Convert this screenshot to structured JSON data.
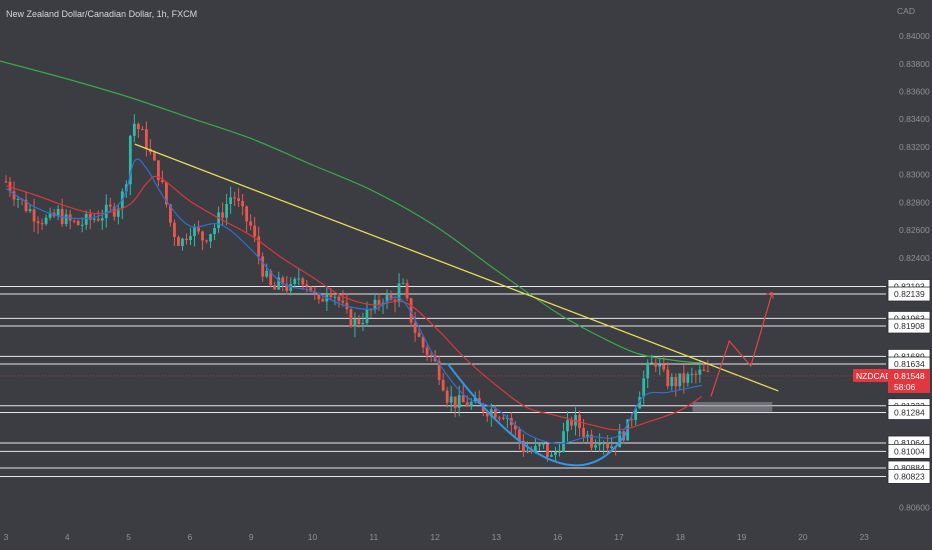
{
  "header": {
    "title": "New Zealand Dollar/Canadian Dollar, 1h, FXCM"
  },
  "colors": {
    "background": "#3b3d43",
    "bull_candle": "#2fb9a7",
    "bear_candle": "#e9574f",
    "ma_fast": "#2f6fd0",
    "ma_mid": "#d9373b",
    "ma_slow": "#38a84a",
    "trendline": "#e8dc59",
    "projection": "#e64343",
    "cup_arc": "#2e98e6",
    "level_line": "#e6e6e6",
    "price_label_bg": "#e0383e"
  },
  "chart_data": {
    "type": "candlestick",
    "symbol": "NZDCAD",
    "timeframe": "1h",
    "y_axis": {
      "currency_label": "CAD",
      "range": [
        0.8048,
        0.8426
      ],
      "ticks": [
        "0.84000",
        "0.83800",
        "0.83600",
        "0.83400",
        "0.83200",
        "0.83000",
        "0.82800",
        "0.82600",
        "0.82400",
        "0.80600"
      ]
    },
    "x_axis": {
      "ticks": [
        "3",
        "4",
        "5",
        "6",
        "9",
        "10",
        "11",
        "12",
        "13",
        "16",
        "17",
        "18",
        "19",
        "20",
        "23"
      ],
      "day_index": [
        0,
        1,
        2,
        3,
        4,
        5,
        6,
        7,
        8,
        9,
        10,
        11,
        12,
        13,
        14
      ]
    },
    "horizontal_levels": [
      "0.82193",
      "0.82139",
      "0.81963",
      "0.81908",
      "0.81689",
      "0.81634",
      "0.81333",
      "0.81284",
      "0.81064",
      "0.81004",
      "0.80884",
      "0.80823"
    ],
    "current_price": {
      "ticker": "NZDCAD",
      "price": "0.81548",
      "countdown": "58:06"
    },
    "close_path": [
      [
        0.0,
        0.8295
      ],
      [
        0.15,
        0.8286
      ],
      [
        0.3,
        0.8278
      ],
      [
        0.5,
        0.827
      ],
      [
        0.7,
        0.8266
      ],
      [
        0.85,
        0.8272
      ],
      [
        1.0,
        0.8266
      ],
      [
        1.2,
        0.8264
      ],
      [
        1.4,
        0.8268
      ],
      [
        1.6,
        0.8272
      ],
      [
        1.8,
        0.8276
      ],
      [
        1.95,
        0.829
      ],
      [
        2.0,
        0.8325
      ],
      [
        2.1,
        0.8338
      ],
      [
        2.2,
        0.833
      ],
      [
        2.3,
        0.8322
      ],
      [
        2.4,
        0.8308
      ],
      [
        2.5,
        0.83
      ],
      [
        2.6,
        0.8282
      ],
      [
        2.7,
        0.8262
      ],
      [
        2.85,
        0.825
      ],
      [
        3.0,
        0.8262
      ],
      [
        3.2,
        0.8254
      ],
      [
        3.4,
        0.8262
      ],
      [
        3.55,
        0.8275
      ],
      [
        3.7,
        0.8287
      ],
      [
        3.85,
        0.8272
      ],
      [
        4.0,
        0.8262
      ],
      [
        4.1,
        0.8245
      ],
      [
        4.2,
        0.823
      ],
      [
        4.35,
        0.8215
      ],
      [
        4.5,
        0.8223
      ],
      [
        4.65,
        0.8216
      ],
      [
        4.8,
        0.8228
      ],
      [
        4.95,
        0.822
      ],
      [
        5.1,
        0.8205
      ],
      [
        5.25,
        0.822
      ],
      [
        5.4,
        0.8212
      ],
      [
        5.55,
        0.8198
      ],
      [
        5.7,
        0.8193
      ],
      [
        5.85,
        0.8198
      ],
      [
        6.0,
        0.8203
      ],
      [
        6.15,
        0.8212
      ],
      [
        6.3,
        0.8208
      ],
      [
        6.45,
        0.8222
      ],
      [
        6.55,
        0.8205
      ],
      [
        6.65,
        0.819
      ],
      [
        6.8,
        0.8176
      ],
      [
        6.95,
        0.8168
      ],
      [
        7.1,
        0.8155
      ],
      [
        7.2,
        0.814
      ],
      [
        7.35,
        0.8135
      ],
      [
        7.55,
        0.8135
      ],
      [
        7.75,
        0.8132
      ],
      [
        7.95,
        0.813
      ],
      [
        8.15,
        0.8128
      ],
      [
        8.3,
        0.8115
      ],
      [
        8.45,
        0.8102
      ],
      [
        8.6,
        0.81
      ],
      [
        8.75,
        0.8104
      ],
      [
        8.9,
        0.8095
      ],
      [
        9.0,
        0.8103
      ],
      [
        9.1,
        0.8113
      ],
      [
        9.25,
        0.8124
      ],
      [
        9.4,
        0.8116
      ],
      [
        9.55,
        0.8108
      ],
      [
        9.7,
        0.8112
      ],
      [
        9.85,
        0.8104
      ],
      [
        10.0,
        0.811
      ],
      [
        10.15,
        0.8118
      ],
      [
        10.3,
        0.814
      ],
      [
        10.45,
        0.8158
      ],
      [
        10.6,
        0.8166
      ],
      [
        10.75,
        0.8152
      ],
      [
        10.9,
        0.815
      ],
      [
        11.05,
        0.8152
      ],
      [
        11.2,
        0.8154
      ],
      [
        11.35,
        0.8157
      ],
      [
        11.45,
        0.8155
      ]
    ],
    "ma_slow_path": [
      [
        -0.1,
        0.8382
      ],
      [
        1.0,
        0.8369
      ],
      [
        2.0,
        0.8356
      ],
      [
        3.0,
        0.8341
      ],
      [
        4.0,
        0.8326
      ],
      [
        5.0,
        0.8307
      ],
      [
        6.0,
        0.8288
      ],
      [
        7.0,
        0.8263
      ],
      [
        8.0,
        0.8231
      ],
      [
        9.0,
        0.82
      ],
      [
        9.7,
        0.8183
      ],
      [
        10.3,
        0.8171
      ],
      [
        10.9,
        0.8166
      ],
      [
        11.35,
        0.8164
      ]
    ],
    "ma_mid_path": [
      [
        0.0,
        0.8292
      ],
      [
        0.5,
        0.8285
      ],
      [
        1.0,
        0.8277
      ],
      [
        1.5,
        0.8272
      ],
      [
        2.0,
        0.8278
      ],
      [
        2.3,
        0.8294
      ],
      [
        2.5,
        0.8298
      ],
      [
        3.0,
        0.8281
      ],
      [
        3.5,
        0.8268
      ],
      [
        4.0,
        0.8256
      ],
      [
        4.5,
        0.824
      ],
      [
        5.0,
        0.8226
      ],
      [
        5.5,
        0.8212
      ],
      [
        6.0,
        0.8206
      ],
      [
        6.5,
        0.8208
      ],
      [
        7.0,
        0.819
      ],
      [
        7.5,
        0.8167
      ],
      [
        8.0,
        0.8148
      ],
      [
        8.5,
        0.8132
      ],
      [
        9.0,
        0.8126
      ],
      [
        9.5,
        0.812
      ],
      [
        10.0,
        0.8116
      ],
      [
        10.5,
        0.8122
      ],
      [
        11.0,
        0.813
      ],
      [
        11.35,
        0.814
      ]
    ],
    "ma_fast_path": [
      [
        0.0,
        0.829
      ],
      [
        0.5,
        0.8276
      ],
      [
        1.0,
        0.8269
      ],
      [
        1.5,
        0.827
      ],
      [
        1.9,
        0.8282
      ],
      [
        2.1,
        0.831
      ],
      [
        2.3,
        0.8304
      ],
      [
        2.6,
        0.8282
      ],
      [
        3.0,
        0.8263
      ],
      [
        3.5,
        0.8264
      ],
      [
        4.0,
        0.8246
      ],
      [
        4.5,
        0.8222
      ],
      [
        5.0,
        0.8216
      ],
      [
        5.5,
        0.8206
      ],
      [
        6.0,
        0.8203
      ],
      [
        6.45,
        0.821
      ],
      [
        7.0,
        0.8168
      ],
      [
        7.5,
        0.814
      ],
      [
        8.0,
        0.8131
      ],
      [
        8.5,
        0.8113
      ],
      [
        9.0,
        0.8106
      ],
      [
        9.5,
        0.8111
      ],
      [
        10.0,
        0.8112
      ],
      [
        10.4,
        0.814
      ],
      [
        10.8,
        0.8143
      ],
      [
        11.35,
        0.8148
      ]
    ],
    "trendline": [
      [
        2.1,
        0.8322
      ],
      [
        12.6,
        0.8144
      ]
    ],
    "cup_arc": [
      [
        7.2,
        0.8164
      ],
      [
        9.2,
        0.809
      ],
      [
        10.15,
        0.8116
      ]
    ],
    "projection_path": [
      [
        11.5,
        0.814
      ],
      [
        11.8,
        0.818
      ],
      [
        12.15,
        0.8162
      ],
      [
        12.5,
        0.8215
      ]
    ],
    "highlight_zone": [
      11.2,
      12.5,
      0.8136,
      0.8129
    ]
  }
}
